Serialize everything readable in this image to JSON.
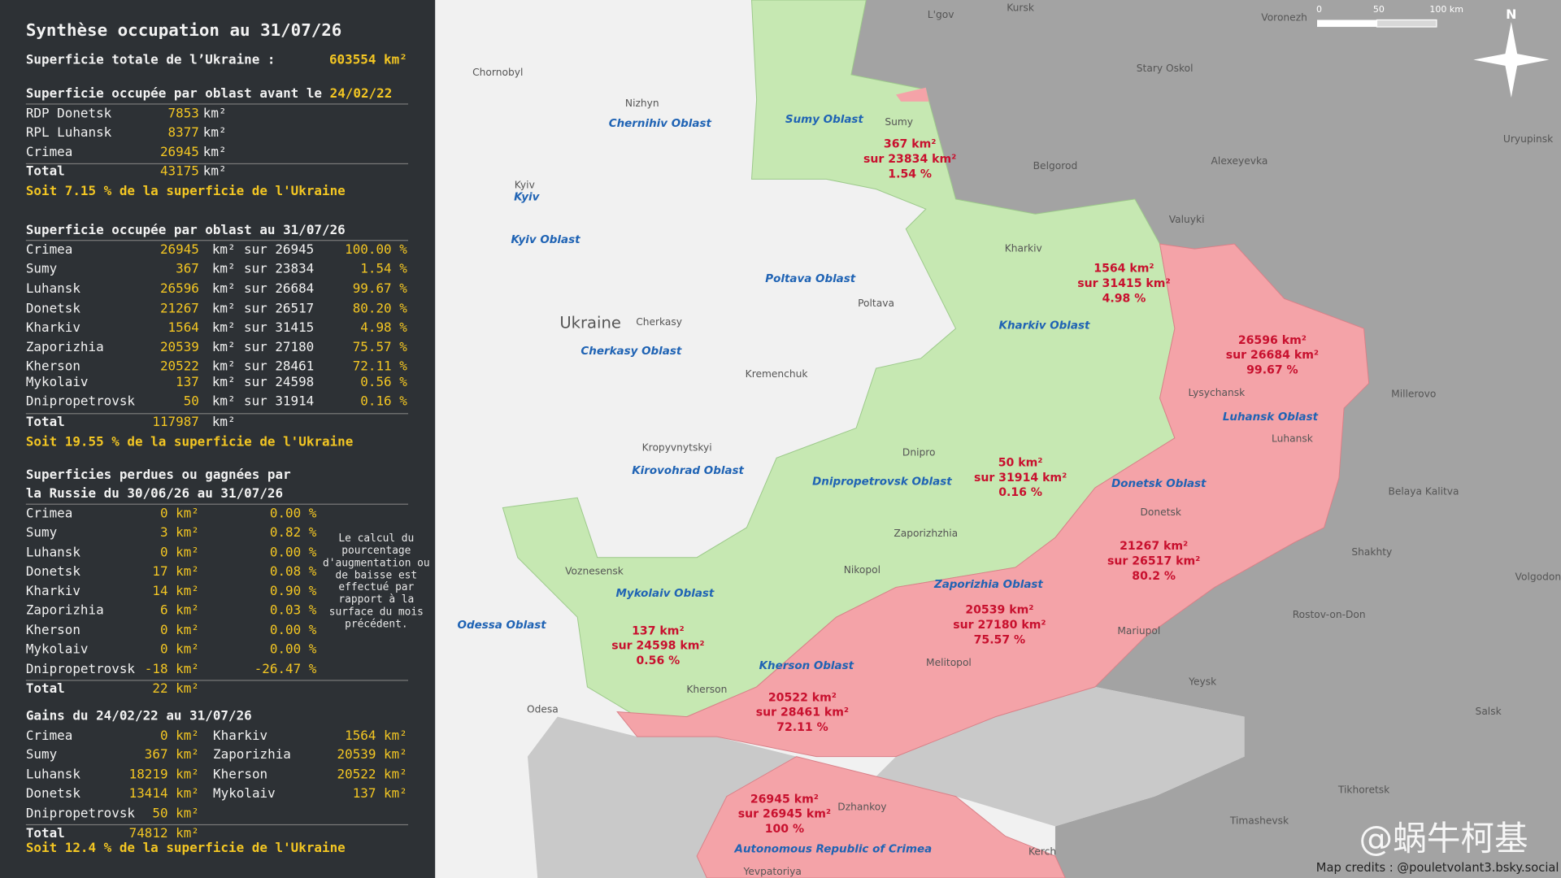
{
  "sidebar": {
    "title": "Synthèse occupation au 31/07/26",
    "total": [
      "Superficie totale de l’Ukraine :",
      "603554 km²"
    ],
    "before": {
      "heading": "Superficie occupée par oblast avant le ",
      "date": "24/02/22",
      "rows": [
        [
          "RDP Donetsk",
          "7853",
          "km²"
        ],
        [
          "RPL Luhansk",
          "8377",
          "km²"
        ],
        [
          "Crimea",
          "26945",
          "km²"
        ],
        [
          "Total",
          "43175",
          "km²"
        ]
      ],
      "summary": "Soit 7.15 % de la superficie de l'Ukraine"
    },
    "current": {
      "heading": "Superficie occupée par oblast au 31/07/26",
      "rows": [
        [
          "Crimea",
          "26945",
          "km²",
          "sur 26945",
          "100.00 %"
        ],
        [
          "Sumy",
          "367",
          "km²",
          "sur 23834",
          "1.54 %"
        ],
        [
          "Luhansk",
          "26596",
          "km²",
          "sur 26684",
          "99.67 %"
        ],
        [
          "Donetsk",
          "21267",
          "km²",
          "sur 26517",
          "80.20 %"
        ],
        [
          "Kharkiv",
          "1564",
          "km²",
          "sur 31415",
          "4.98 %"
        ],
        [
          "Zaporizhia",
          "20539",
          "km²",
          "sur 27180",
          "75.57 %"
        ],
        [
          "Kherson",
          "20522",
          "km²",
          "sur 28461",
          "72.11 %"
        ],
        [
          "Mykolaiv",
          "137",
          "km²",
          "sur 24598",
          "0.56 %"
        ],
        [
          "Dnipropetrovsk",
          "50",
          "km²",
          "sur 31914",
          "0.16 %"
        ],
        [
          "Total",
          "117987",
          "km²"
        ]
      ],
      "summary": "Soit 19.55 % de la superficie de l'Ukraine"
    },
    "change": {
      "heading": [
        "Superficies perdues ou gagnées par",
        "la Russie du 30/06/26 au 31/07/26"
      ],
      "rows": [
        [
          "Crimea",
          "0 km²",
          "0.00 %"
        ],
        [
          "Sumy",
          "3 km²",
          "0.82 %"
        ],
        [
          "Luhansk",
          "0 km²",
          "0.00 %"
        ],
        [
          "Donetsk",
          "17 km²",
          "0.08 %"
        ],
        [
          "Kharkiv",
          "14 km²",
          "0.90 %"
        ],
        [
          "Zaporizhia",
          "6 km²",
          "0.03 %"
        ],
        [
          "Kherson",
          "0 km²",
          "0.00 %"
        ],
        [
          "Mykolaiv",
          "0 km²",
          "0.00 %"
        ],
        [
          "Dnipropetrovsk",
          "-18 km²",
          "-26.47 %"
        ],
        [
          "Total",
          "22 km²"
        ]
      ],
      "note": [
        "Le calcul du",
        "pourcentage",
        "d'augmentation ou",
        "de baisse est",
        "effectué par",
        "rapport à la",
        "surface du mois",
        "précédent."
      ]
    },
    "gains": {
      "heading": "Gains du 24/02/22 au 31/07/26",
      "rows": [
        [
          "Crimea",
          "0 km²",
          "Kharkiv",
          "1564 km²"
        ],
        [
          "Sumy",
          "367 km²",
          "Zaporizhia",
          "20539 km²"
        ],
        [
          "Luhansk",
          "18219 km²",
          "Kherson",
          "20522 km²"
        ],
        [
          "Donetsk",
          "13414 km²",
          "Mykolaiv",
          "137 km²"
        ],
        [
          "Dnipropetrovsk",
          "50 km²"
        ],
        [
          "Total",
          "74812 km²"
        ]
      ],
      "summary": "Soit 12.4 % de la superficie de l'Ukraine"
    }
  },
  "map": {
    "oblasts": [
      "Sumy Oblast",
      "Chernihiv Oblast",
      "Kyiv",
      "Kyiv Oblast",
      "Poltava Oblast",
      "Kharkiv Oblast",
      "Cherkasy Oblast",
      "Luhansk Oblast",
      "Kirovohrad Oblast",
      "Dnipropetrovsk Oblast",
      "Donetsk Oblast",
      "Zaporizhia Oblast",
      "Mykolaiv Oblast",
      "Odessa Oblast",
      "Kherson Oblast",
      "Autonomous Republic of Crimea"
    ],
    "country": "Ukraine",
    "cities": [
      "L'gov",
      "Kursk",
      "Voronezh",
      "Chornobyl",
      "Nizhyn",
      "Stary Oskol",
      "Sumy",
      "Uryupinsk",
      "Belgorod",
      "Alexeyevka",
      "Kyiv",
      "Valuyki",
      "Kharkiv",
      "Poltava",
      "Cherkasy",
      "Kremenchuk",
      "Lysychansk",
      "Millerovo",
      "Luhansk",
      "Kropyvnytskyi",
      "Dnipro",
      "Belaya Kalitva",
      "Donetsk",
      "Zaporizhzhia",
      "Shakhty",
      "Voznesensk",
      "Nikopol",
      "Volgodon",
      "Rostov-on-Don",
      "Mariupol",
      "Melitopol",
      "Kherson",
      "Yeysk",
      "Odesa",
      "Salsk",
      "Dzhankoy",
      "Tikhoretsk",
      "Timashevsk",
      "Kerch",
      "Yevpatoriya"
    ],
    "annotations": [
      [
        "367 km²",
        "sur 23834 km²",
        "1.54 %"
      ],
      [
        "1564 km²",
        "sur 31415 km²",
        "4.98 %"
      ],
      [
        "26596 km²",
        "sur 26684 km²",
        "99.67 %"
      ],
      [
        "50 km²",
        "sur 31914 km²",
        "0.16 %"
      ],
      [
        "21267 km²",
        "sur 26517 km²",
        "80.2 %"
      ],
      [
        "20539 km²",
        "sur 27180 km²",
        "75.57 %"
      ],
      [
        "137 km²",
        "sur 24598 km²",
        "0.56 %"
      ],
      [
        "20522 km²",
        "sur 28461 km²",
        "72.11 %"
      ],
      [
        "26945 km²",
        "sur 26945 km²",
        "100 %"
      ]
    ],
    "scale": [
      "0",
      "50",
      "100 km"
    ],
    "north": "N",
    "watermark": "@蜗牛柯基",
    "credits": "Map credits : @pouletvolant3.bsky.social"
  }
}
